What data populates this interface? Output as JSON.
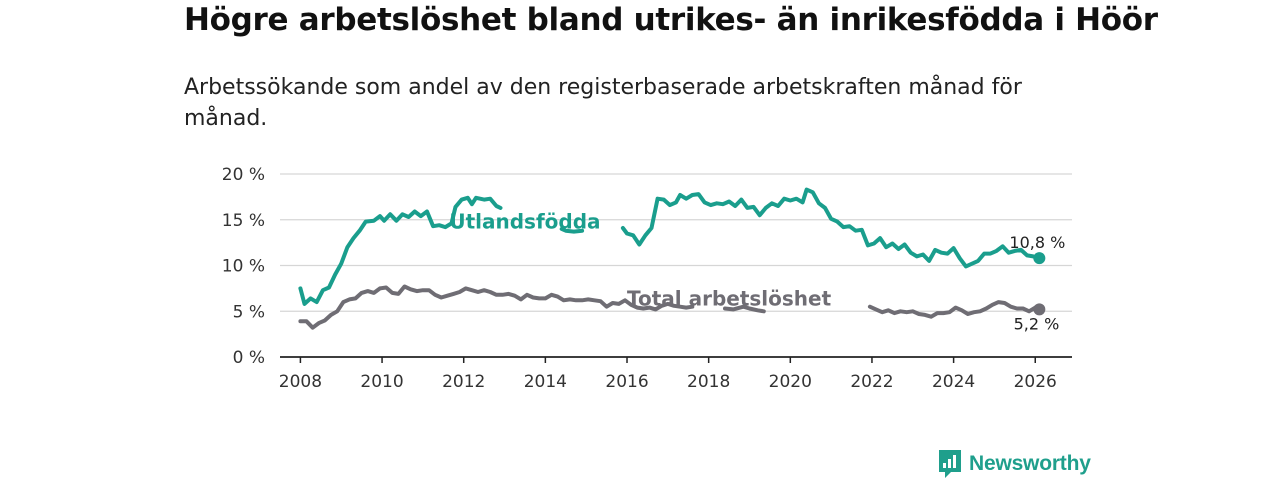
{
  "header": {
    "title": "Högre arbetslöshet bland utrikes- än inrikesfödda i Höör",
    "subtitle": "Arbetssökande som andel av den registerbaserade arbetskraften månad för månad."
  },
  "brand": {
    "name": "Newsworthy",
    "color": "#1f9f8c"
  },
  "chart_data": {
    "type": "line",
    "title": "Högre arbetslöshet bland utrikes- än inrikesfödda i Höör",
    "subtitle": "Arbetssökande som andel av den registerbaserade arbetskraften månad för månad.",
    "xlabel": "",
    "ylabel": "",
    "xlim": [
      2007.5,
      2026.9
    ],
    "ylim": [
      0,
      20
    ],
    "x_ticks": [
      2008,
      2010,
      2012,
      2014,
      2016,
      2018,
      2020,
      2022,
      2024,
      2026
    ],
    "y_ticks": [
      0,
      5,
      10,
      15,
      20
    ],
    "y_tick_labels": [
      "0 %",
      "5 %",
      "10 %",
      "15 %",
      "20 %"
    ],
    "grid": "horizontal",
    "series": [
      {
        "name": "Utlandsfödda",
        "color": "#1a9e8d",
        "end_label": "10,8 %",
        "points": [
          [
            2008.0,
            7.5
          ],
          [
            2008.1,
            5.8
          ],
          [
            2008.25,
            6.4
          ],
          [
            2008.4,
            6.0
          ],
          [
            2008.55,
            7.3
          ],
          [
            2008.7,
            7.6
          ],
          [
            2008.85,
            9.0
          ],
          [
            2009.0,
            10.2
          ],
          [
            2009.15,
            12.0
          ],
          [
            2009.3,
            13.0
          ],
          [
            2009.45,
            13.8
          ],
          [
            2009.6,
            14.8
          ],
          [
            2009.8,
            14.9
          ],
          [
            2009.95,
            15.4
          ],
          [
            2010.05,
            14.9
          ],
          [
            2010.2,
            15.6
          ],
          [
            2010.35,
            14.9
          ],
          [
            2010.5,
            15.6
          ],
          [
            2010.65,
            15.3
          ],
          [
            2010.8,
            15.9
          ],
          [
            2010.95,
            15.4
          ],
          [
            2011.1,
            15.9
          ],
          [
            2011.25,
            14.3
          ],
          [
            2011.4,
            14.4
          ],
          [
            2011.55,
            14.2
          ],
          [
            2011.7,
            14.6
          ],
          [
            2011.8,
            16.4
          ],
          [
            2011.95,
            17.2
          ],
          [
            2012.1,
            17.4
          ],
          [
            2012.2,
            16.7
          ],
          [
            2012.3,
            17.4
          ],
          [
            2012.5,
            17.2
          ],
          [
            2012.65,
            17.3
          ],
          [
            2012.8,
            16.5
          ],
          [
            2012.9,
            16.3
          ],
          [
            2014.4,
            14.0
          ],
          [
            2014.5,
            13.8
          ],
          [
            2014.7,
            13.7
          ],
          [
            2014.9,
            13.8
          ],
          [
            2015.9,
            14.1
          ],
          [
            2016.0,
            13.5
          ],
          [
            2016.15,
            13.3
          ],
          [
            2016.3,
            12.3
          ],
          [
            2016.45,
            13.3
          ],
          [
            2016.6,
            14.1
          ],
          [
            2016.75,
            17.3
          ],
          [
            2016.9,
            17.2
          ],
          [
            2017.05,
            16.6
          ],
          [
            2017.2,
            16.9
          ],
          [
            2017.3,
            17.7
          ],
          [
            2017.45,
            17.3
          ],
          [
            2017.6,
            17.7
          ],
          [
            2017.75,
            17.8
          ],
          [
            2017.9,
            16.9
          ],
          [
            2018.05,
            16.6
          ],
          [
            2018.2,
            16.8
          ],
          [
            2018.35,
            16.7
          ],
          [
            2018.5,
            17.0
          ],
          [
            2018.65,
            16.5
          ],
          [
            2018.8,
            17.2
          ],
          [
            2018.95,
            16.3
          ],
          [
            2019.1,
            16.4
          ],
          [
            2019.25,
            15.5
          ],
          [
            2019.4,
            16.3
          ],
          [
            2019.55,
            16.8
          ],
          [
            2019.7,
            16.5
          ],
          [
            2019.85,
            17.3
          ],
          [
            2020.0,
            17.1
          ],
          [
            2020.15,
            17.3
          ],
          [
            2020.3,
            16.9
          ],
          [
            2020.4,
            18.3
          ],
          [
            2020.55,
            18.0
          ],
          [
            2020.7,
            16.8
          ],
          [
            2020.85,
            16.3
          ],
          [
            2021.0,
            15.1
          ],
          [
            2021.15,
            14.8
          ],
          [
            2021.3,
            14.2
          ],
          [
            2021.45,
            14.3
          ],
          [
            2021.6,
            13.8
          ],
          [
            2021.75,
            13.9
          ],
          [
            2021.9,
            12.2
          ],
          [
            2022.05,
            12.4
          ],
          [
            2022.2,
            13.0
          ],
          [
            2022.35,
            12.0
          ],
          [
            2022.5,
            12.4
          ],
          [
            2022.65,
            11.8
          ],
          [
            2022.8,
            12.3
          ],
          [
            2022.95,
            11.4
          ],
          [
            2023.1,
            11.0
          ],
          [
            2023.25,
            11.2
          ],
          [
            2023.4,
            10.5
          ],
          [
            2023.55,
            11.7
          ],
          [
            2023.7,
            11.4
          ],
          [
            2023.85,
            11.3
          ],
          [
            2024.0,
            11.9
          ],
          [
            2024.15,
            10.8
          ],
          [
            2024.3,
            9.9
          ],
          [
            2024.45,
            10.2
          ],
          [
            2024.6,
            10.5
          ],
          [
            2024.75,
            11.3
          ],
          [
            2024.9,
            11.3
          ],
          [
            2025.05,
            11.6
          ],
          [
            2025.2,
            12.1
          ],
          [
            2025.35,
            11.4
          ],
          [
            2025.5,
            11.6
          ],
          [
            2025.65,
            11.7
          ],
          [
            2025.8,
            11.1
          ],
          [
            2025.95,
            11.0
          ],
          [
            2026.1,
            10.8
          ]
        ]
      },
      {
        "name": "Total arbetslöshet",
        "color": "#6f6d74",
        "end_label": "5,2 %",
        "points": [
          [
            2008.0,
            3.9
          ],
          [
            2008.15,
            3.9
          ],
          [
            2008.3,
            3.2
          ],
          [
            2008.45,
            3.7
          ],
          [
            2008.6,
            4.0
          ],
          [
            2008.75,
            4.6
          ],
          [
            2008.9,
            5.0
          ],
          [
            2009.05,
            6.0
          ],
          [
            2009.2,
            6.3
          ],
          [
            2009.35,
            6.4
          ],
          [
            2009.5,
            7.0
          ],
          [
            2009.65,
            7.2
          ],
          [
            2009.8,
            7.0
          ],
          [
            2009.95,
            7.5
          ],
          [
            2010.1,
            7.6
          ],
          [
            2010.25,
            7.0
          ],
          [
            2010.4,
            6.9
          ],
          [
            2010.55,
            7.7
          ],
          [
            2010.7,
            7.4
          ],
          [
            2010.85,
            7.2
          ],
          [
            2011.0,
            7.3
          ],
          [
            2011.15,
            7.3
          ],
          [
            2011.3,
            6.8
          ],
          [
            2011.45,
            6.5
          ],
          [
            2011.6,
            6.7
          ],
          [
            2011.75,
            6.9
          ],
          [
            2011.9,
            7.1
          ],
          [
            2012.05,
            7.5
          ],
          [
            2012.2,
            7.3
          ],
          [
            2012.35,
            7.1
          ],
          [
            2012.5,
            7.3
          ],
          [
            2012.65,
            7.1
          ],
          [
            2012.8,
            6.8
          ],
          [
            2012.95,
            6.8
          ],
          [
            2013.1,
            6.9
          ],
          [
            2013.25,
            6.7
          ],
          [
            2013.4,
            6.3
          ],
          [
            2013.55,
            6.8
          ],
          [
            2013.7,
            6.5
          ],
          [
            2013.85,
            6.4
          ],
          [
            2014.0,
            6.4
          ],
          [
            2014.15,
            6.8
          ],
          [
            2014.3,
            6.6
          ],
          [
            2014.45,
            6.2
          ],
          [
            2014.6,
            6.3
          ],
          [
            2014.75,
            6.2
          ],
          [
            2014.9,
            6.2
          ],
          [
            2015.05,
            6.3
          ],
          [
            2015.2,
            6.2
          ],
          [
            2015.35,
            6.1
          ],
          [
            2015.5,
            5.5
          ],
          [
            2015.65,
            5.9
          ],
          [
            2015.8,
            5.8
          ],
          [
            2015.95,
            6.2
          ],
          [
            2016.1,
            5.7
          ],
          [
            2016.25,
            5.4
          ],
          [
            2016.4,
            5.3
          ],
          [
            2016.55,
            5.4
          ],
          [
            2016.7,
            5.2
          ],
          [
            2016.85,
            5.6
          ],
          [
            2017.0,
            5.8
          ],
          [
            2017.15,
            5.6
          ],
          [
            2017.3,
            5.5
          ],
          [
            2017.45,
            5.4
          ],
          [
            2017.6,
            5.5
          ],
          [
            2018.4,
            5.3
          ],
          [
            2018.6,
            5.2
          ],
          [
            2018.85,
            5.5
          ],
          [
            2019.0,
            5.3
          ],
          [
            2019.2,
            5.1
          ],
          [
            2019.35,
            5.0
          ],
          [
            2021.95,
            5.5
          ],
          [
            2022.1,
            5.2
          ],
          [
            2022.25,
            4.9
          ],
          [
            2022.4,
            5.1
          ],
          [
            2022.55,
            4.8
          ],
          [
            2022.7,
            5.0
          ],
          [
            2022.85,
            4.9
          ],
          [
            2023.0,
            5.0
          ],
          [
            2023.15,
            4.7
          ],
          [
            2023.3,
            4.6
          ],
          [
            2023.45,
            4.4
          ],
          [
            2023.6,
            4.8
          ],
          [
            2023.75,
            4.8
          ],
          [
            2023.9,
            4.9
          ],
          [
            2024.05,
            5.4
          ],
          [
            2024.2,
            5.1
          ],
          [
            2024.35,
            4.7
          ],
          [
            2024.5,
            4.9
          ],
          [
            2024.65,
            5.0
          ],
          [
            2024.8,
            5.3
          ],
          [
            2024.95,
            5.7
          ],
          [
            2025.1,
            6.0
          ],
          [
            2025.25,
            5.9
          ],
          [
            2025.4,
            5.5
          ],
          [
            2025.55,
            5.3
          ],
          [
            2025.7,
            5.3
          ],
          [
            2025.85,
            5.0
          ],
          [
            2026.0,
            5.4
          ],
          [
            2026.1,
            5.2
          ]
        ]
      }
    ],
    "annotations": [
      {
        "text": "Utlandsfödda",
        "series": "Utlandsfödda",
        "x": 2013.5,
        "y": 14.8
      },
      {
        "text": "Total arbetslöshet",
        "series": "Total arbetslöshet",
        "x": 2018.5,
        "y": 6.4
      }
    ]
  }
}
